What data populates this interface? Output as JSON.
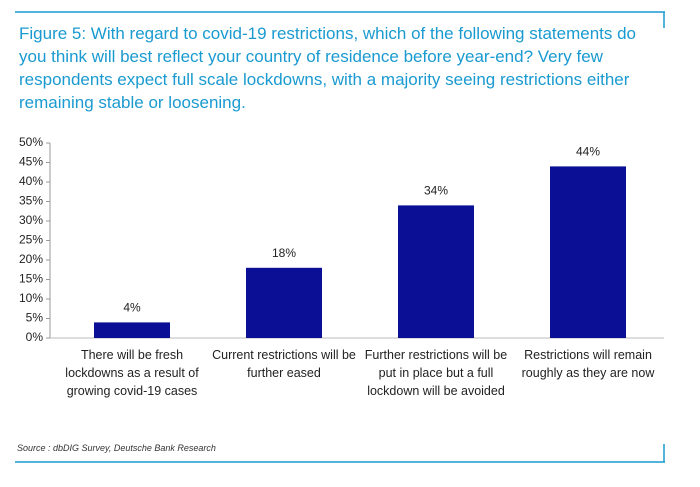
{
  "chart_data": {
    "type": "bar",
    "title": "Figure 5: With regard to covid-19 restrictions, which of the following statements do you think will best reflect your country of residence before year-end? Very few respondents expect full scale lockdowns, with a majority seeing restrictions either remaining stable or loosening.",
    "categories": [
      "There will be fresh lockdowns as a result of growing covid-19 cases",
      "Current restrictions will be further eased",
      "Further restrictions will be put in place but a full lockdown will be avoided",
      "Restrictions will remain roughly as they are now"
    ],
    "values": [
      4,
      18,
      34,
      44
    ],
    "value_labels": [
      "4%",
      "18%",
      "34%",
      "44%"
    ],
    "color": "#0b0f96",
    "ylim": [
      0,
      50
    ],
    "yticks": [
      {
        "value": 0,
        "label": "0%"
      },
      {
        "value": 5,
        "label": "5%"
      },
      {
        "value": 10,
        "label": "10%"
      },
      {
        "value": 15,
        "label": "15%"
      },
      {
        "value": 20,
        "label": "20%"
      },
      {
        "value": 25,
        "label": "25%"
      },
      {
        "value": 30,
        "label": "30%"
      },
      {
        "value": 35,
        "label": "35%"
      },
      {
        "value": 40,
        "label": "40%"
      },
      {
        "value": 45,
        "label": "45%"
      },
      {
        "value": 50,
        "label": "50%"
      }
    ],
    "grid": false,
    "source": "Source : dbDIG Survey, Deutsche Bank Research"
  }
}
